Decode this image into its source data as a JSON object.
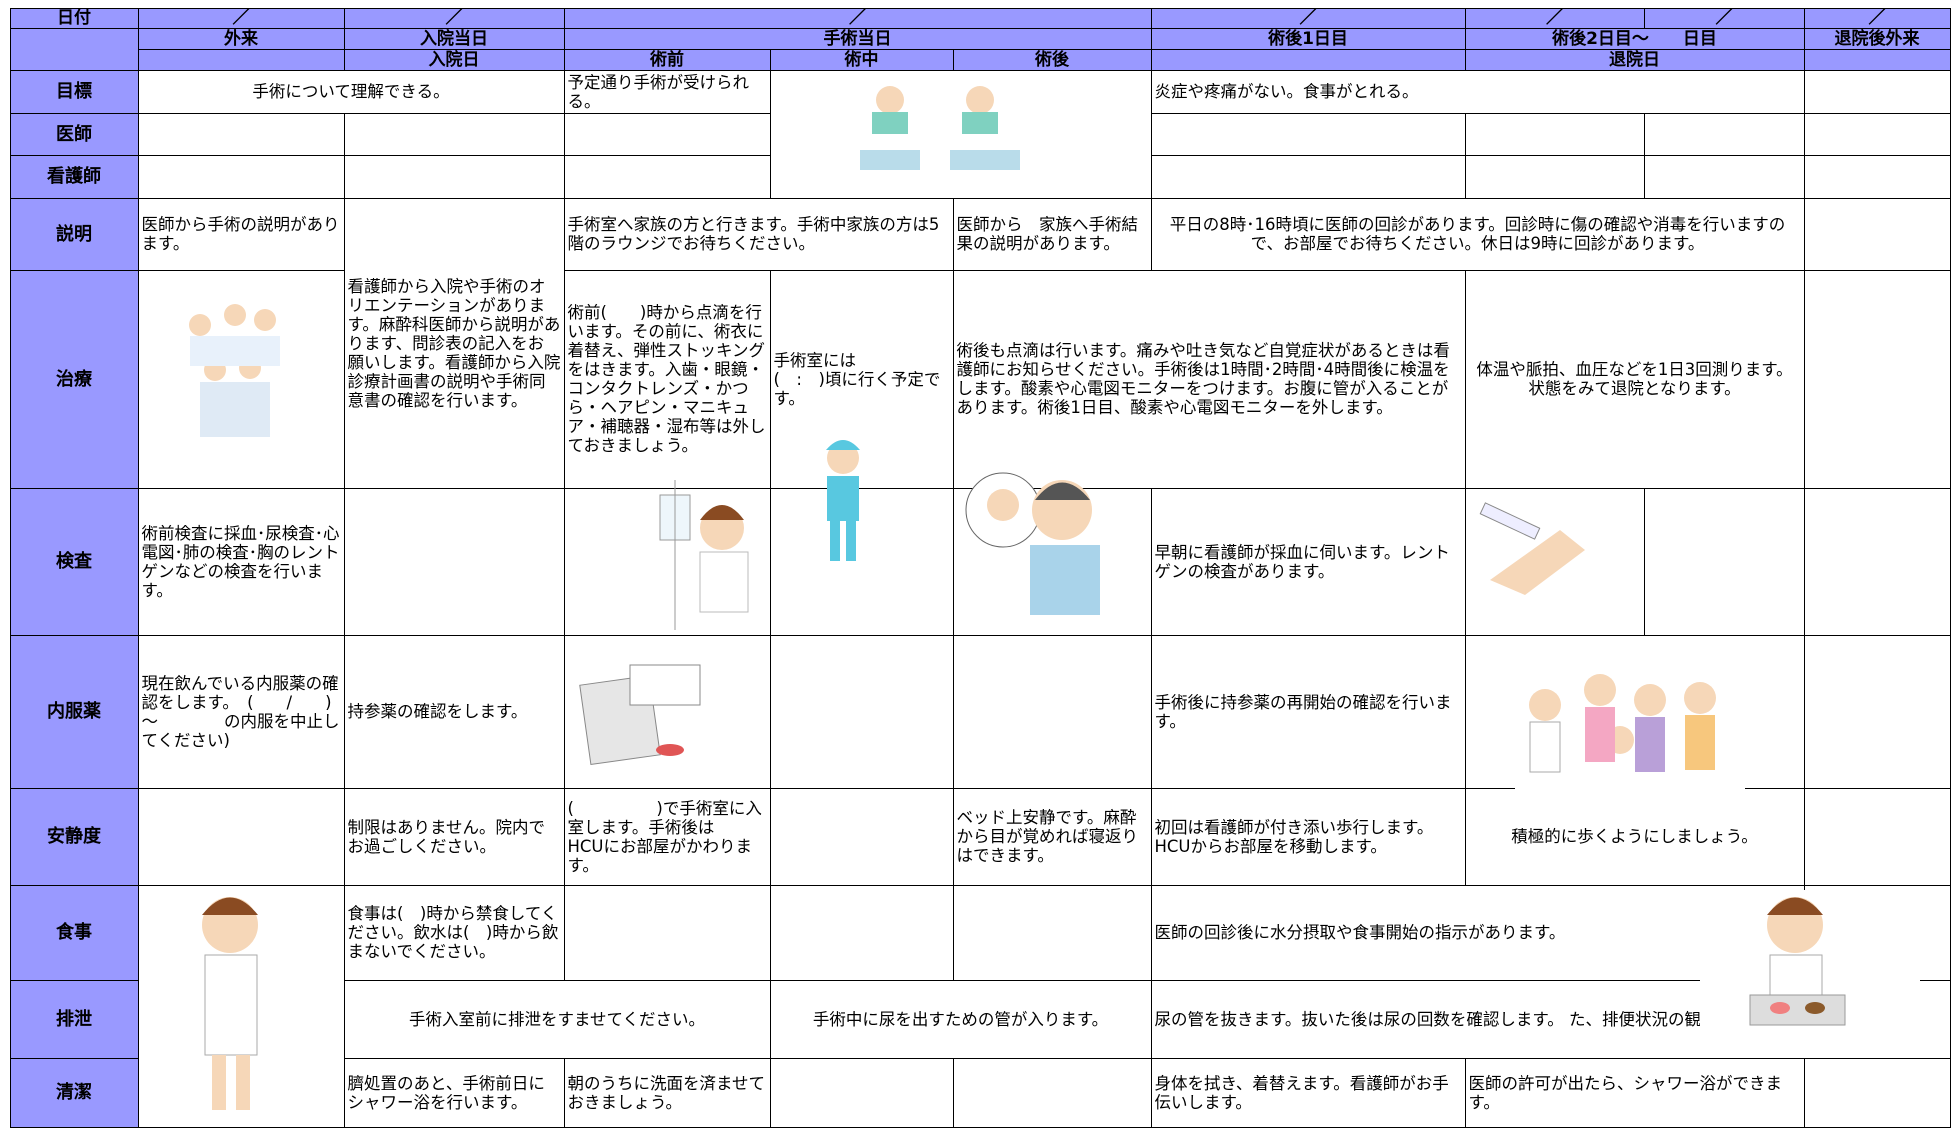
{
  "header": {
    "date_label": "日付",
    "slashes": [
      "／",
      "／",
      "／",
      "／",
      "／",
      "／",
      "／"
    ],
    "row2": [
      "外来",
      "入院当日",
      "手術当日",
      "術後1日目",
      "術後2日目～　　日目",
      "退院後外来"
    ],
    "row3": [
      "入院日",
      "術前",
      "術中",
      "術後",
      "退院日"
    ]
  },
  "rows": [
    {
      "label": "目標",
      "cells": [
        "手術について理解できる。",
        "予定通り手術が受けられる。",
        "炎症や疼痛がない。食事がとれる。"
      ]
    },
    {
      "label": "医師",
      "cells": []
    },
    {
      "label": "看護師",
      "cells": []
    },
    {
      "label": "説明",
      "cells": [
        "医師から手術の説明があります。",
        "看護師から入院や手術のオリエンテーションがあります。麻酔科医師から説明があります、問診表の記入をお願いします。看護師から入院診療計画書の説明や手術同意書の確認を行います。",
        "手術室へ家族の方と行きます。手術中家族の方は5階のラウンジでお待ちください。",
        "医師から　家族へ手術結果の説明があります。",
        "平日の8時･16時頃に医師の回診があります。回診時に傷の確認や消毒を行いますので、お部屋でお待ちください。休日は9時に回診があります。"
      ]
    },
    {
      "label": "治療",
      "cells": [
        "術前(　　)時から点滴を行います。その前に、術衣に着替え、弾性ストッキングをはきます。入歯・眼鏡・コンタクトレンズ・かつら・ヘアピン・マニキュア・補聴器・湿布等は外しておきましょう。",
        "手術室には　　　　(　:　)頃に行く予定です。",
        "術後も点滴は行います。痛みや吐き気など自覚症状があるときは看護師にお知らせください。手術後は1時間･2時間･4時間後に検温をします。酸素や心電図モニターをつけます。お腹に管が入ることがあります。術後1日目、酸素や心電図モニターを外します。",
        "体温や脈拍、血圧などを1日3回測ります。状態をみて退院となります。"
      ]
    },
    {
      "label": "検査",
      "cells": [
        "術前検査に採血･尿検査･心電図･肺の検査･胸のレントゲンなどの検査を行います。",
        "早朝に看護師が採血に伺います。レントゲンの検査があります。"
      ]
    },
    {
      "label": "内服薬",
      "cells": [
        "現在飲んでいる内服薬の確認をします。　(　　/　　)～　　　　の内服を中止してください)",
        "持参薬の確認をします。",
        "手術後に持参薬の再開始の確認を行います。"
      ]
    },
    {
      "label": "安静度",
      "cells": [
        "制限はありません。院内でお過ごしください。",
        "(　　　　　)で手術室に入室します。手術後は　HCUにお部屋がかわります。",
        "ベッド上安静です。麻酔から目が覚めれば寝返りはできます。",
        "初回は看護師が付き添い歩行します。HCUからお部屋を移動します。",
        "積極的に歩くようにしましょう。"
      ]
    },
    {
      "label": "食事",
      "cells": [
        "食事は(　)時から禁食してください。飲水は(　)時から飲まないでください。",
        "医師の回診後に水分摂取や食事開始の指示があります。"
      ]
    },
    {
      "label": "排泄",
      "cells": [
        "手術入室前に排泄をすませてください。",
        "手術中に尿を出すための管が入ります。",
        "尿の管を抜きます。抜いた後は尿の回数を確認します。 た、排便状況の観察も行います。"
      ]
    },
    {
      "label": "清潔",
      "cells": [
        "臍処置のあと、手術前日にシャワー浴を行います。",
        "朝のうちに洗面を済ませておきましょう。",
        "身体を拭き、着替えます。看護師がお手伝いします。",
        "医師の許可が出たら、シャワー浴ができます。"
      ]
    }
  ]
}
